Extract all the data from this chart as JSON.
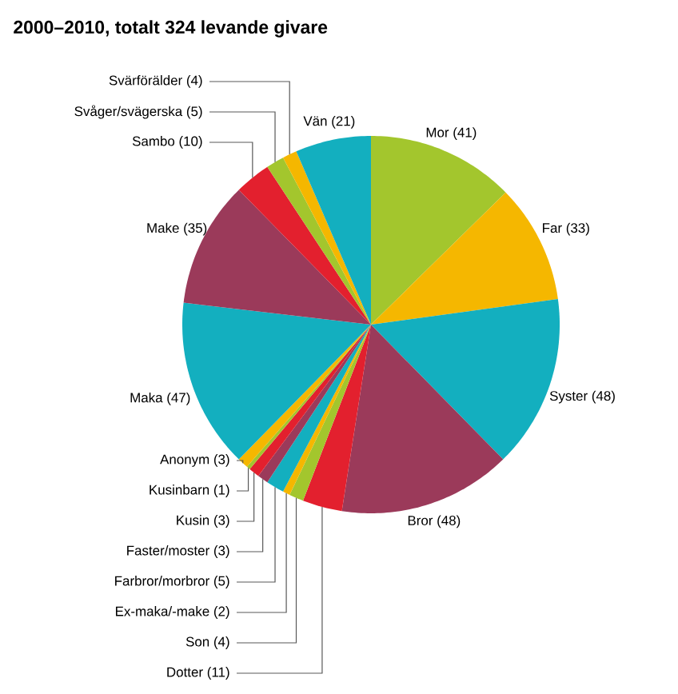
{
  "chart_data": {
    "type": "pie",
    "title": "2000–2010, totalt 324 levande givare",
    "categories": [
      "Mor (41)",
      "Far (33)",
      "Syster (48)",
      "Bror (48)",
      "Dotter (11)",
      "Son (4)",
      "Ex-maka/-make (2)",
      "Farbror/morbror (5)",
      "Faster/moster (3)",
      "Kusin (3)",
      "Kusinbarn (1)",
      "Anonym (3)",
      "Maka (47)",
      "Make (35)",
      "Sambo (10)",
      "Svåger/svägerska (5)",
      "Svärförälder (4)",
      "Vän (21)"
    ],
    "values": [
      41,
      33,
      48,
      48,
      11,
      4,
      2,
      5,
      3,
      3,
      1,
      3,
      47,
      35,
      10,
      5,
      4,
      21
    ],
    "colors": [
      "#a3c62d",
      "#f5b700",
      "#13afbf",
      "#9b3a5a",
      "#e3202e",
      "#a3c62d",
      "#f5b700",
      "#13afbf",
      "#9b3a5a",
      "#e3202e",
      "#a3c62d",
      "#f5b700",
      "#13afbf",
      "#9b3a5a",
      "#e3202e",
      "#a3c62d",
      "#f5b700",
      "#13afbf"
    ]
  }
}
